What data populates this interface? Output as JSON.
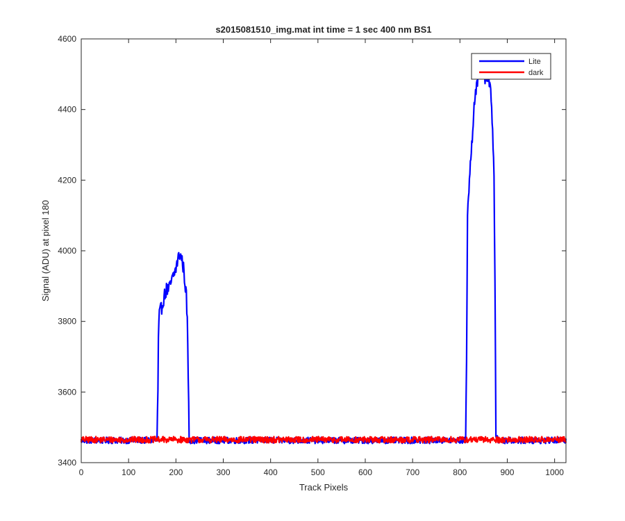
{
  "chart_data": {
    "type": "line",
    "title": "s2015081510_img.mat int time = 1 sec  400 nm BS1",
    "xlabel": "Track Pixels",
    "ylabel": "Signal (ADU) at pixel 180",
    "xlim": [
      0,
      1024
    ],
    "ylim": [
      3400,
      4600
    ],
    "xticks": [
      "0",
      "100",
      "200",
      "300",
      "400",
      "500",
      "600",
      "700",
      "800",
      "900",
      "1000"
    ],
    "yticks": [
      "3400",
      "3600",
      "3800",
      "4000",
      "4200",
      "4400",
      "4600"
    ],
    "grid": false,
    "legend_position": "top-right",
    "series": [
      {
        "name": "Lite",
        "color": "#0000ff",
        "baseline": 3463,
        "noise_amplitude": 9,
        "x": [
          0,
          100,
          160,
          162,
          163,
          165,
          170,
          175,
          180,
          185,
          190,
          195,
          200,
          205,
          208,
          212,
          216,
          220,
          222,
          224,
          226,
          228,
          235,
          300,
          400,
          500,
          600,
          700,
          800,
          812,
          814,
          816,
          820,
          825,
          830,
          835,
          840,
          845,
          850,
          855,
          860,
          865,
          870,
          872,
          874,
          876,
          880,
          900,
          1000,
          1024
        ],
        "values": [
          3463,
          3463,
          3463,
          3600,
          3750,
          3820,
          3840,
          3870,
          3890,
          3890,
          3910,
          3930,
          3950,
          3980,
          3990,
          3980,
          3950,
          3900,
          3870,
          3800,
          3650,
          3463,
          3463,
          3463,
          3463,
          3463,
          3463,
          3463,
          3463,
          3463,
          3700,
          4100,
          4200,
          4300,
          4420,
          4460,
          4490,
          4520,
          4500,
          4480,
          4490,
          4470,
          4300,
          4200,
          3900,
          3480,
          3463,
          3463,
          3463,
          3463
        ]
      },
      {
        "name": "dark",
        "color": "#ff0000",
        "baseline": 3465,
        "noise_amplitude": 9,
        "x": [
          0,
          1024
        ],
        "values": [
          3465,
          3465
        ]
      }
    ]
  }
}
